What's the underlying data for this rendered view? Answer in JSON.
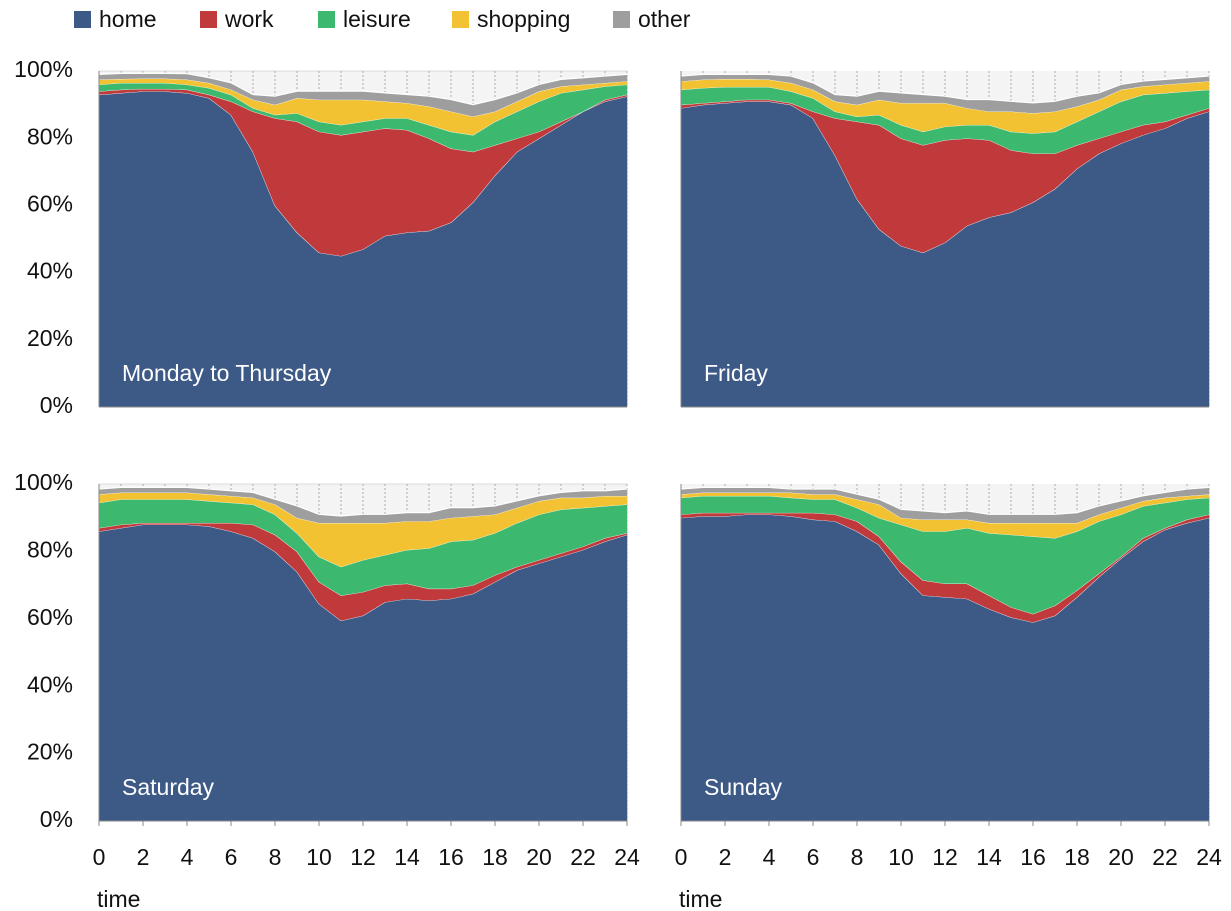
{
  "chart_data": [
    {
      "type": "stacked_area",
      "title": "Monday to Thursday",
      "x": [
        0,
        1,
        2,
        3,
        4,
        5,
        6,
        7,
        8,
        9,
        10,
        11,
        12,
        13,
        14,
        15,
        16,
        17,
        18,
        19,
        20,
        21,
        22,
        23,
        24
      ],
      "xlim": [
        0,
        24
      ],
      "ylim": [
        0,
        100
      ],
      "yticks": [
        {
          "value": 0,
          "label": "0%"
        },
        {
          "value": 20,
          "label": "20%"
        },
        {
          "value": 40,
          "label": "40%"
        },
        {
          "value": 60,
          "label": "60%"
        },
        {
          "value": 80,
          "label": "80%"
        },
        {
          "value": 100,
          "label": "100%"
        }
      ],
      "series": [
        {
          "name": "home",
          "color": "#3d5a87",
          "values": [
            93,
            93.5,
            94,
            94,
            93.5,
            92,
            87,
            76,
            60,
            52,
            46,
            45,
            47,
            51,
            52,
            52.5,
            55,
            61,
            69,
            76,
            80,
            84,
            88,
            91,
            92.5
          ]
        },
        {
          "name": "work",
          "color": "#c0393b",
          "values": [
            1,
            1,
            0.7,
            0.7,
            1,
            1,
            4,
            12,
            26,
            33,
            36,
            36,
            35,
            32,
            30.5,
            27.5,
            22,
            15,
            9,
            4,
            2,
            1,
            0,
            0.5,
            0.5
          ]
        },
        {
          "name": "leisure",
          "color": "#3cb96f",
          "values": [
            2,
            2,
            1.8,
            1.8,
            1.5,
            2,
            2,
            1,
            1,
            2.5,
            3,
            3,
            3,
            3,
            3.5,
            4,
            5,
            5,
            7,
            8,
            9,
            8.5,
            6.5,
            4,
            3
          ]
        },
        {
          "name": "shopping",
          "color": "#f2c232",
          "values": [
            1.5,
            1.2,
            1.3,
            1.3,
            1.5,
            1.5,
            1.5,
            2.5,
            3,
            4.5,
            6.5,
            7.5,
            6.5,
            5,
            4.5,
            5.5,
            6,
            5.5,
            3,
            3,
            3,
            2,
            1.5,
            1,
            1
          ]
        },
        {
          "name": "other",
          "color": "#9e9e9e",
          "values": [
            1.5,
            1.6,
            1.5,
            1.5,
            1.7,
            1.5,
            2,
            1.5,
            2.5,
            2,
            2.5,
            2.5,
            2.5,
            2.5,
            2.5,
            3,
            3.5,
            3.5,
            3.5,
            2.5,
            2,
            2,
            2,
            2,
            2
          ]
        }
      ]
    },
    {
      "type": "stacked_area",
      "title": "Friday",
      "x": [
        0,
        1,
        2,
        3,
        4,
        5,
        6,
        7,
        8,
        9,
        10,
        11,
        12,
        13,
        14,
        15,
        16,
        17,
        18,
        19,
        20,
        21,
        22,
        23,
        24
      ],
      "xlim": [
        0,
        24
      ],
      "ylim": [
        0,
        100
      ],
      "series": [
        {
          "values": [
            89,
            90,
            90.5,
            91,
            91,
            90,
            86,
            75,
            62,
            53,
            48,
            46,
            49,
            54,
            56.5,
            58,
            61,
            65,
            71,
            75.5,
            78.5,
            81,
            83,
            86,
            88
          ]
        },
        {
          "values": [
            1,
            0.5,
            0.5,
            0.5,
            0.5,
            0.5,
            2,
            11,
            23,
            31,
            32,
            32,
            30.5,
            26,
            23,
            18.5,
            14.5,
            10.5,
            7,
            4.5,
            3.5,
            3,
            2,
            1,
            1
          ]
        },
        {
          "values": [
            4.5,
            4.5,
            4.3,
            3.8,
            3.8,
            3.5,
            4,
            2,
            1.5,
            3,
            4,
            4,
            4,
            4,
            4.5,
            5.5,
            6,
            6.5,
            7,
            8,
            9,
            9,
            8.5,
            7,
            5.5
          ]
        },
        {
          "values": [
            2.5,
            2.5,
            2.4,
            2.4,
            2.2,
            2.5,
            2.5,
            3,
            3.5,
            4.5,
            6.5,
            8.5,
            7,
            5,
            4,
            6,
            6,
            6,
            4.5,
            3.5,
            3.5,
            2.5,
            2.5,
            2.5,
            2.5
          ]
        },
        {
          "values": [
            1.5,
            1.5,
            1.3,
            1.3,
            1.5,
            2,
            2,
            2,
            2.5,
            2.5,
            3,
            2.5,
            2,
            2.5,
            3.5,
            3,
            3,
            3,
            3,
            2,
            1.5,
            1.5,
            1.5,
            1.5,
            1.5
          ]
        }
      ]
    },
    {
      "type": "stacked_area",
      "title": "Saturday",
      "xlabel": "time",
      "x": [
        0,
        1,
        2,
        3,
        4,
        5,
        6,
        7,
        8,
        9,
        10,
        11,
        12,
        13,
        14,
        15,
        16,
        17,
        18,
        19,
        20,
        21,
        22,
        23,
        24
      ],
      "xlim": [
        0,
        24
      ],
      "ylim": [
        0,
        100
      ],
      "xticks": [
        0,
        2,
        4,
        6,
        8,
        10,
        12,
        14,
        16,
        18,
        20,
        22,
        24
      ],
      "yticks": [
        {
          "value": 0,
          "label": "0%"
        },
        {
          "value": 20,
          "label": "20%"
        },
        {
          "value": 40,
          "label": "40%"
        },
        {
          "value": 60,
          "label": "60%"
        },
        {
          "value": 80,
          "label": "80%"
        },
        {
          "value": 100,
          "label": "100%"
        }
      ],
      "series": [
        {
          "values": [
            86,
            87,
            88,
            88,
            88,
            87.5,
            86,
            84,
            80,
            74,
            64.5,
            59.5,
            61,
            65,
            66,
            65.5,
            66,
            67.5,
            71,
            74.5,
            76.5,
            78.5,
            80.5,
            83,
            85
          ]
        },
        {
          "values": [
            1,
            1,
            0.5,
            0.5,
            0.5,
            1,
            2.5,
            4,
            5,
            6,
            6.5,
            7.5,
            7,
            5,
            4.5,
            3.5,
            3,
            2.5,
            2,
            1,
            1,
            1,
            1,
            1,
            0.5
          ]
        },
        {
          "values": [
            7.5,
            7.5,
            7,
            7,
            7,
            6.5,
            6,
            6,
            6,
            5.5,
            7.5,
            8.5,
            9.5,
            9,
            10,
            12,
            14,
            13.5,
            12.5,
            13,
            13.5,
            13,
            11.5,
            9.5,
            8.5
          ]
        },
        {
          "values": [
            2.5,
            2,
            2,
            2,
            2,
            2,
            2,
            2,
            3,
            4.5,
            10,
            13,
            11,
            9.5,
            8.5,
            8,
            7,
            7,
            5.5,
            4.5,
            4,
            3.5,
            3,
            3,
            2.5
          ]
        },
        {
          "values": [
            1.5,
            1.5,
            1.5,
            1.5,
            1.5,
            1.5,
            1.5,
            1.5,
            1.5,
            3.5,
            2.5,
            2,
            2.5,
            2.5,
            2.5,
            2.5,
            3,
            2.5,
            2.5,
            2,
            1.5,
            1.5,
            2,
            1.5,
            2
          ]
        }
      ]
    },
    {
      "type": "stacked_area",
      "title": "Sunday",
      "xlabel": "time",
      "x": [
        0,
        1,
        2,
        3,
        4,
        5,
        6,
        7,
        8,
        9,
        10,
        11,
        12,
        13,
        14,
        15,
        16,
        17,
        18,
        19,
        20,
        21,
        22,
        23,
        24
      ],
      "xlim": [
        0,
        24
      ],
      "ylim": [
        0,
        100
      ],
      "xticks": [
        0,
        2,
        4,
        6,
        8,
        10,
        12,
        14,
        16,
        18,
        20,
        22,
        24
      ],
      "series": [
        {
          "values": [
            90,
            90.5,
            90.5,
            91,
            91,
            90.5,
            89.5,
            89,
            86,
            82,
            73.5,
            67,
            66.5,
            66,
            63,
            60.5,
            59,
            61,
            66.5,
            72.5,
            78,
            83,
            86.5,
            88.5,
            90
          ]
        },
        {
          "values": [
            1,
            1,
            1,
            0.5,
            0.5,
            1,
            2,
            2,
            3,
            2.5,
            3.5,
            4.5,
            4,
            4.5,
            4,
            3,
            2.5,
            3,
            2,
            1,
            0.5,
            1,
            0.5,
            1,
            1
          ]
        },
        {
          "values": [
            5,
            5,
            5,
            5,
            5,
            4.5,
            4,
            4.5,
            4,
            5.5,
            11,
            14.5,
            15.5,
            16.5,
            18.5,
            21.5,
            23,
            20,
            17.5,
            15.5,
            12.5,
            9.5,
            7.5,
            6,
            5
          ]
        },
        {
          "values": [
            1,
            1,
            1,
            1,
            1,
            1.5,
            1.5,
            1.5,
            2.5,
            4,
            2,
            3.5,
            3.5,
            2.5,
            3,
            3.5,
            4,
            4.5,
            2.5,
            2,
            2,
            1.5,
            1.5,
            1,
            1
          ]
        },
        {
          "values": [
            1.5,
            1.5,
            1.5,
            1.5,
            1.5,
            1,
            1.5,
            1.5,
            1.5,
            1.5,
            2.5,
            2.5,
            2,
            2.5,
            2.5,
            2.5,
            2.5,
            2.5,
            3,
            2.5,
            2,
            1.5,
            1.5,
            2,
            2
          ]
        }
      ]
    }
  ]
}
